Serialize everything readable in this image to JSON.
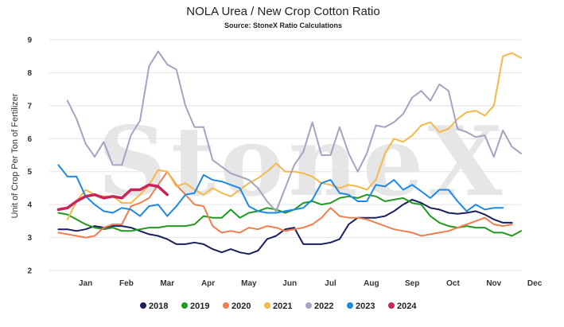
{
  "chart_data": {
    "type": "line",
    "title": "NOLA Urea / New Crop Cotton Ratio",
    "subtitle": "Source: StoneX Ratio Calculations",
    "ylabel": "Unit of Crop Per Ton of Fertilizer",
    "xlabel": "",
    "watermark": "StoneX",
    "ylim": [
      2,
      9
    ],
    "yticks": [
      "2",
      "3",
      "4",
      "5",
      "6",
      "7",
      "8",
      "9"
    ],
    "xlim": [
      0,
      52
    ],
    "x_ticks": [
      {
        "label": "Jan",
        "x": 4
      },
      {
        "label": "Feb",
        "x": 8.5
      },
      {
        "label": "Mar",
        "x": 13
      },
      {
        "label": "Apr",
        "x": 17.5
      },
      {
        "label": "May",
        "x": 22
      },
      {
        "label": "Jun",
        "x": 26.5
      },
      {
        "label": "Jul",
        "x": 31
      },
      {
        "label": "Aug",
        "x": 35.5
      },
      {
        "label": "Sep",
        "x": 40
      },
      {
        "label": "Oct",
        "x": 44.5
      },
      {
        "label": "Nov",
        "x": 49
      },
      {
        "label": "Dec",
        "x": 53.5
      }
    ],
    "legend_position": "bottom",
    "grid": true,
    "series": [
      {
        "name": "2018",
        "color": "#1b1f5e",
        "width": 2,
        "values": [
          3.25,
          3.25,
          3.2,
          3.25,
          3.35,
          3.3,
          3.35,
          3.35,
          3.3,
          3.2,
          3.1,
          3.05,
          2.95,
          2.8,
          2.8,
          2.85,
          2.8,
          2.65,
          2.55,
          2.65,
          2.55,
          2.5,
          2.6,
          2.95,
          3.05,
          3.25,
          3.3,
          2.8,
          2.8,
          2.8,
          2.85,
          2.95,
          3.4,
          3.6,
          3.6,
          3.6,
          3.65,
          3.8,
          4.0,
          4.15,
          4.05,
          3.9,
          3.85,
          3.75,
          3.72,
          3.75,
          3.8,
          3.7,
          3.55,
          3.45,
          3.45
        ]
      },
      {
        "name": "2019",
        "color": "#1f9a1f",
        "width": 2,
        "values": [
          3.75,
          3.7,
          3.55,
          3.4,
          3.3,
          3.25,
          3.3,
          3.2,
          3.2,
          3.25,
          3.3,
          3.3,
          3.35,
          3.35,
          3.35,
          3.4,
          3.65,
          3.6,
          3.6,
          3.85,
          3.6,
          3.75,
          3.8,
          3.9,
          3.85,
          3.75,
          3.85,
          4.05,
          4.1,
          4.0,
          4.05,
          4.2,
          4.25,
          4.2,
          4.3,
          4.25,
          4.1,
          4.15,
          4.2,
          4.05,
          4.0,
          3.65,
          3.45,
          3.35,
          3.3,
          3.35,
          3.3,
          3.3,
          3.15,
          3.15,
          3.05,
          3.2
        ]
      },
      {
        "name": "2020",
        "color": "#f07e4f",
        "width": 2,
        "values": [
          3.15,
          3.1,
          3.05,
          3.0,
          3.05,
          3.3,
          3.4,
          3.4,
          3.95,
          4.05,
          4.2,
          4.6,
          5.0,
          4.6,
          4.3,
          4.0,
          3.95,
          3.35,
          3.15,
          3.2,
          3.15,
          3.3,
          3.25,
          3.35,
          3.3,
          3.2,
          3.25,
          3.3,
          3.4,
          3.6,
          3.9,
          3.65,
          3.6,
          3.6,
          3.55,
          3.45,
          3.35,
          3.25,
          3.2,
          3.15,
          3.05,
          3.1,
          3.15,
          3.2,
          3.3,
          3.4,
          3.5,
          3.6,
          3.4,
          3.35,
          3.4
        ]
      },
      {
        "name": "2021",
        "color": "#f5b84a",
        "width": 2,
        "values": [
          null,
          3.55,
          4.1,
          4.45,
          4.3,
          4.25,
          4.25,
          4.05,
          4.05,
          4.3,
          4.6,
          5.05,
          5.0,
          4.55,
          4.65,
          4.45,
          4.3,
          4.5,
          4.35,
          4.25,
          4.45,
          4.65,
          4.8,
          5.0,
          5.25,
          5.0,
          5.0,
          4.95,
          4.85,
          4.65,
          4.6,
          4.5,
          4.6,
          4.55,
          4.45,
          4.75,
          5.55,
          6.0,
          5.9,
          6.1,
          6.4,
          6.5,
          6.2,
          6.3,
          6.6,
          6.8,
          6.85,
          6.7,
          7.0,
          8.5,
          8.6,
          8.45
        ]
      },
      {
        "name": "2022",
        "color": "#a3a3c2",
        "width": 2,
        "values": [
          null,
          7.15,
          6.6,
          5.85,
          5.45,
          5.9,
          5.2,
          5.2,
          6.1,
          6.55,
          8.2,
          8.65,
          8.25,
          8.1,
          7.0,
          6.35,
          6.35,
          5.35,
          5.15,
          4.95,
          4.85,
          4.75,
          4.5,
          4.1,
          3.8,
          4.5,
          5.2,
          5.6,
          6.5,
          5.5,
          5.5,
          6.35,
          5.55,
          5.0,
          5.55,
          6.4,
          6.35,
          6.5,
          6.75,
          7.25,
          7.45,
          7.15,
          7.65,
          7.45,
          6.3,
          6.2,
          6.05,
          6.1,
          5.45,
          6.25,
          5.75,
          5.55
        ]
      },
      {
        "name": "2023",
        "color": "#1e88e5",
        "width": 2,
        "values": [
          5.2,
          4.85,
          4.85,
          4.25,
          4.0,
          3.8,
          3.75,
          3.9,
          3.85,
          3.65,
          3.95,
          4.0,
          3.65,
          3.95,
          4.3,
          4.35,
          4.9,
          4.75,
          4.7,
          4.6,
          4.5,
          3.95,
          3.8,
          3.75,
          3.75,
          3.8,
          3.85,
          3.9,
          4.15,
          4.65,
          4.75,
          4.35,
          4.3,
          4.1,
          4.1,
          4.6,
          4.55,
          4.75,
          4.45,
          4.6,
          4.4,
          4.2,
          4.45,
          4.45,
          4.1,
          3.8,
          4.0,
          3.85,
          3.9,
          3.9
        ]
      },
      {
        "name": "2024",
        "color": "#c9245a",
        "width": 3.5,
        "values": [
          3.85,
          3.9,
          4.1,
          4.25,
          4.3,
          4.2,
          4.25,
          4.2,
          4.45,
          4.45,
          4.6,
          4.55,
          4.3
        ]
      }
    ]
  }
}
